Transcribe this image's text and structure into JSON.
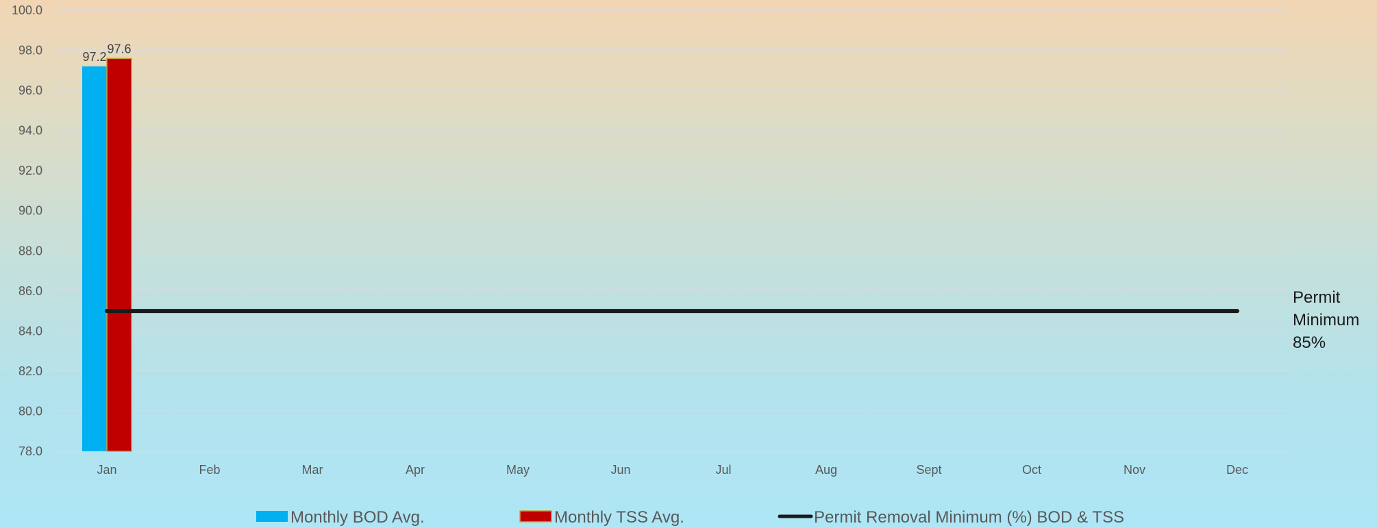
{
  "chart_data": {
    "type": "bar",
    "categories": [
      "Jan",
      "Feb",
      "Mar",
      "Apr",
      "May",
      "Jun",
      "Jul",
      "Aug",
      "Sept",
      "Oct",
      "Nov",
      "Dec"
    ],
    "series": [
      {
        "name": "Monthly BOD Avg.",
        "type": "bar",
        "color": "#00b0f0",
        "values": [
          97.2,
          null,
          null,
          null,
          null,
          null,
          null,
          null,
          null,
          null,
          null,
          null
        ],
        "data_labels": [
          "97.2"
        ]
      },
      {
        "name": "Monthly TSS Avg.",
        "type": "bar",
        "color": "#c00000",
        "values": [
          97.6,
          null,
          null,
          null,
          null,
          null,
          null,
          null,
          null,
          null,
          null,
          null
        ],
        "data_labels": [
          "97.6"
        ]
      },
      {
        "name": "Permit Removal Minimum (%) BOD & TSS",
        "type": "line",
        "color": "#1a1a1a",
        "values": [
          85,
          85,
          85,
          85,
          85,
          85,
          85,
          85,
          85,
          85,
          85,
          85
        ]
      }
    ],
    "ylim": [
      78,
      100
    ],
    "yticks": [
      "78.0",
      "80.0",
      "82.0",
      "84.0",
      "86.0",
      "88.0",
      "90.0",
      "92.0",
      "94.0",
      "96.0",
      "98.0",
      "100.0"
    ],
    "grid": true,
    "legend_position": "bottom",
    "annotation": {
      "lines": [
        "Permit",
        "Minimum",
        "85%"
      ]
    }
  }
}
